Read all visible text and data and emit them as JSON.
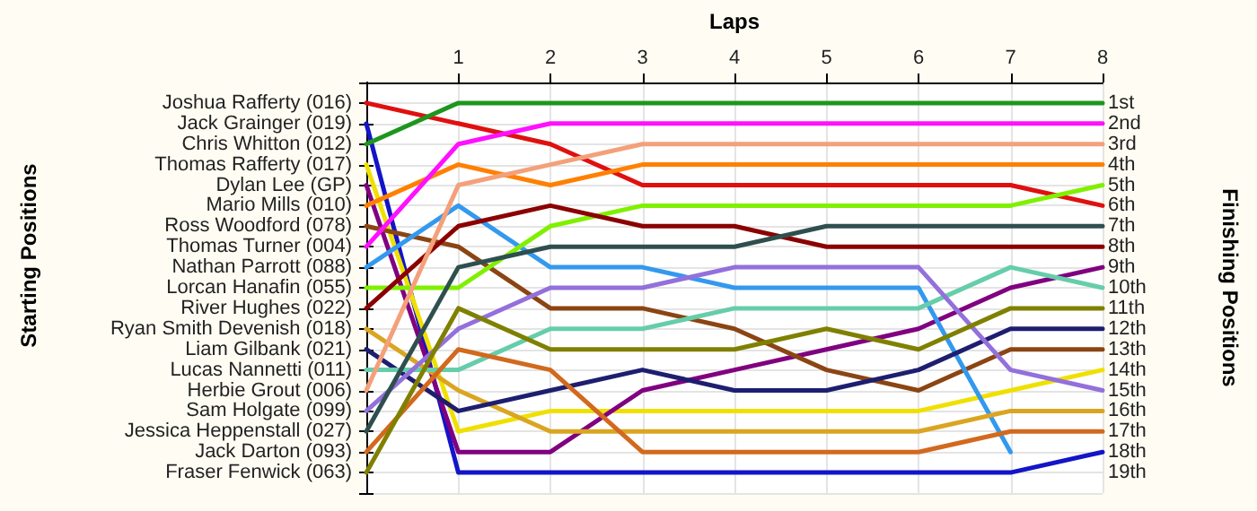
{
  "chart_data": {
    "type": "line",
    "xlabel": "Laps",
    "ylabel": "Finishing Positions",
    "annotations": [
      "Starting Positions"
    ],
    "x": [
      0,
      1,
      2,
      3,
      4,
      5,
      6,
      7,
      8
    ],
    "xlim": [
      0,
      8
    ],
    "xticks": [
      1,
      2,
      3,
      4,
      5,
      6,
      7,
      8
    ],
    "ylim": [
      20,
      0
    ],
    "yticks": [
      {
        "value": 0,
        "label": null
      },
      {
        "value": 1,
        "label": "1st"
      },
      {
        "value": 2,
        "label": "2nd"
      },
      {
        "value": 3,
        "label": "3rd"
      },
      {
        "value": 4,
        "label": "4th"
      },
      {
        "value": 5,
        "label": "5th"
      },
      {
        "value": 6,
        "label": "6th"
      },
      {
        "value": 7,
        "label": "7th"
      },
      {
        "value": 8,
        "label": "8th"
      },
      {
        "value": 9,
        "label": "9th"
      },
      {
        "value": 10,
        "label": "10th"
      },
      {
        "value": 11,
        "label": "11th"
      },
      {
        "value": 12,
        "label": "12th"
      },
      {
        "value": 13,
        "label": "13th"
      },
      {
        "value": 14,
        "label": "14th"
      },
      {
        "value": 15,
        "label": "15th"
      },
      {
        "value": 16,
        "label": "16th"
      },
      {
        "value": 17,
        "label": "17th"
      },
      {
        "value": 18,
        "label": "18th"
      },
      {
        "value": 19,
        "label": "19th"
      },
      {
        "value": 20,
        "label": null
      }
    ],
    "grid": true,
    "legend": false,
    "marker": "none",
    "line_style": "solid",
    "series": [
      {
        "name": "Joshua Rafferty (016)",
        "color": "#e01010",
        "values": [
          1,
          2,
          3,
          5,
          5,
          5,
          5,
          5,
          6
        ]
      },
      {
        "name": "Jack Grainger (019)",
        "color": "#1414c8",
        "values": [
          2,
          19,
          19,
          19,
          19,
          19,
          19,
          19,
          18
        ]
      },
      {
        "name": "Chris Whitton (012)",
        "color": "#1e961e",
        "values": [
          3,
          1,
          1,
          1,
          1,
          1,
          1,
          1,
          1
        ]
      },
      {
        "name": "Thomas Rafferty (017)",
        "color": "#f0e000",
        "values": [
          4,
          17,
          16,
          16,
          16,
          16,
          16,
          15,
          14
        ]
      },
      {
        "name": "Dylan Lee (GP)",
        "color": "#800080",
        "values": [
          5,
          18,
          18,
          15,
          14,
          13,
          12,
          10,
          9
        ]
      },
      {
        "name": "Mario Mills (010)",
        "color": "#ff8000",
        "values": [
          6,
          4,
          5,
          4,
          4,
          4,
          4,
          4,
          4
        ]
      },
      {
        "name": "Ross Woodford (078)",
        "color": "#8b4513",
        "values": [
          7,
          8,
          11,
          11,
          12,
          14,
          15,
          13,
          13
        ]
      },
      {
        "name": "Thomas Turner (004)",
        "color": "#ff10ff",
        "values": [
          8,
          3,
          2,
          2,
          2,
          2,
          2,
          2,
          2
        ]
      },
      {
        "name": "Nathan Parrott (088)",
        "color": "#3399ee",
        "values": [
          9,
          6,
          9,
          9,
          10,
          10,
          10,
          18,
          null
        ]
      },
      {
        "name": "Lorcan Hanafin (055)",
        "color": "#80f000",
        "values": [
          10,
          10,
          7,
          6,
          6,
          6,
          6,
          6,
          5
        ]
      },
      {
        "name": "River Hughes (022)",
        "color": "#8b0000",
        "values": [
          11,
          7,
          6,
          7,
          7,
          8,
          8,
          8,
          8
        ]
      },
      {
        "name": "Ryan Smith Devenish (018)",
        "color": "#daa520",
        "values": [
          12,
          15,
          17,
          17,
          17,
          17,
          17,
          16,
          16
        ]
      },
      {
        "name": "Liam Gilbank (021)",
        "color": "#1e1e70",
        "values": [
          13,
          16,
          15,
          14,
          15,
          15,
          14,
          12,
          12
        ]
      },
      {
        "name": "Lucas Nannetti (011)",
        "color": "#66cdaa",
        "values": [
          14,
          14,
          12,
          12,
          11,
          11,
          11,
          9,
          10
        ]
      },
      {
        "name": "Herbie Grout (006)",
        "color": "#f4a07a",
        "values": [
          15,
          5,
          4,
          3,
          3,
          3,
          3,
          3,
          3
        ]
      },
      {
        "name": "Sam Holgate (099)",
        "color": "#9370db",
        "values": [
          16,
          12,
          10,
          10,
          9,
          9,
          9,
          14,
          15
        ]
      },
      {
        "name": "Jessica Heppenstall (027)",
        "color": "#2f4f4f",
        "values": [
          17,
          9,
          8,
          8,
          8,
          7,
          7,
          7,
          7
        ]
      },
      {
        "name": "Jack Darton (093)",
        "color": "#d2691e",
        "values": [
          18,
          13,
          14,
          18,
          18,
          18,
          18,
          17,
          17
        ]
      },
      {
        "name": "Fraser Fenwick (063)",
        "color": "#808000",
        "values": [
          19,
          11,
          13,
          13,
          13,
          12,
          13,
          11,
          11
        ]
      }
    ]
  }
}
